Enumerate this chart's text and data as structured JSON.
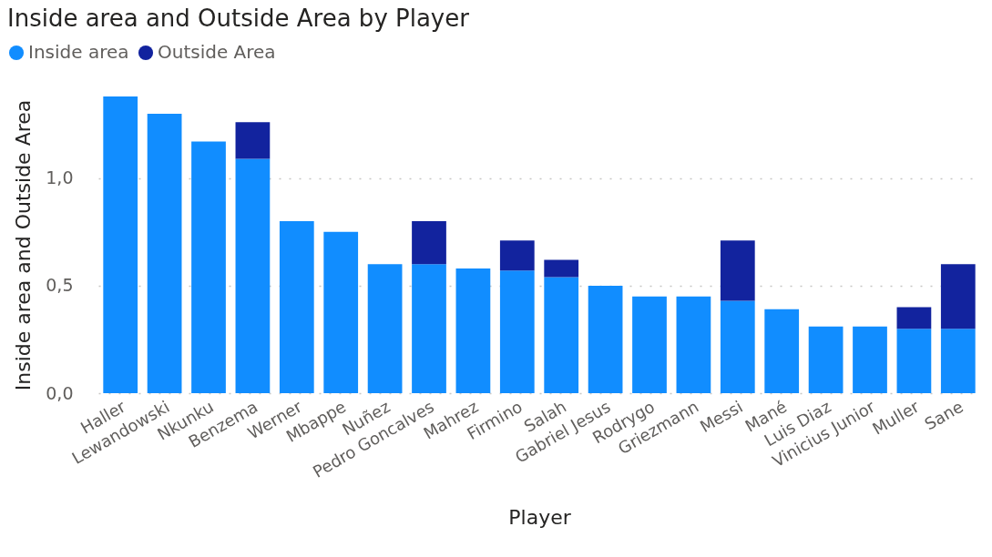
{
  "chart_data": {
    "type": "bar",
    "title": "Inside area and Outside Area by Player",
    "xlabel": "Player",
    "ylabel": "Inside area and Outside Area",
    "categories": [
      "Haller",
      "Lewandowski",
      "Nkunku",
      "Benzema",
      "Werner",
      "Mbappe",
      "Nuñez",
      "Pedro Goncalves",
      "Mahrez",
      "Firmino",
      "Salah",
      "Gabriel Jesus",
      "Rodrygo",
      "Griezmann",
      "Messi",
      "Mané",
      "Luis Diaz",
      "Vinicius Junior",
      "Muller",
      "Sane"
    ],
    "series": [
      {
        "name": "Inside area",
        "color": "#118dff",
        "values": [
          1.38,
          1.3,
          1.17,
          1.09,
          0.8,
          0.75,
          0.6,
          0.6,
          0.58,
          0.57,
          0.54,
          0.5,
          0.45,
          0.45,
          0.43,
          0.39,
          0.31,
          0.31,
          0.3,
          0.3
        ]
      },
      {
        "name": "Outside Area",
        "color": "#12239e",
        "values": [
          null,
          null,
          null,
          0.17,
          null,
          null,
          null,
          0.2,
          null,
          0.14,
          0.08,
          null,
          null,
          null,
          0.28,
          null,
          null,
          null,
          0.1,
          0.3
        ]
      }
    ],
    "stacked": true,
    "ylim": [
      0,
      1.38
    ],
    "yticks": [
      {
        "value": 0,
        "label": "0,0"
      },
      {
        "value": 0.5,
        "label": "0,5"
      },
      {
        "value": 1.0,
        "label": "1,0"
      }
    ],
    "grid": "y",
    "legend": "top left"
  }
}
